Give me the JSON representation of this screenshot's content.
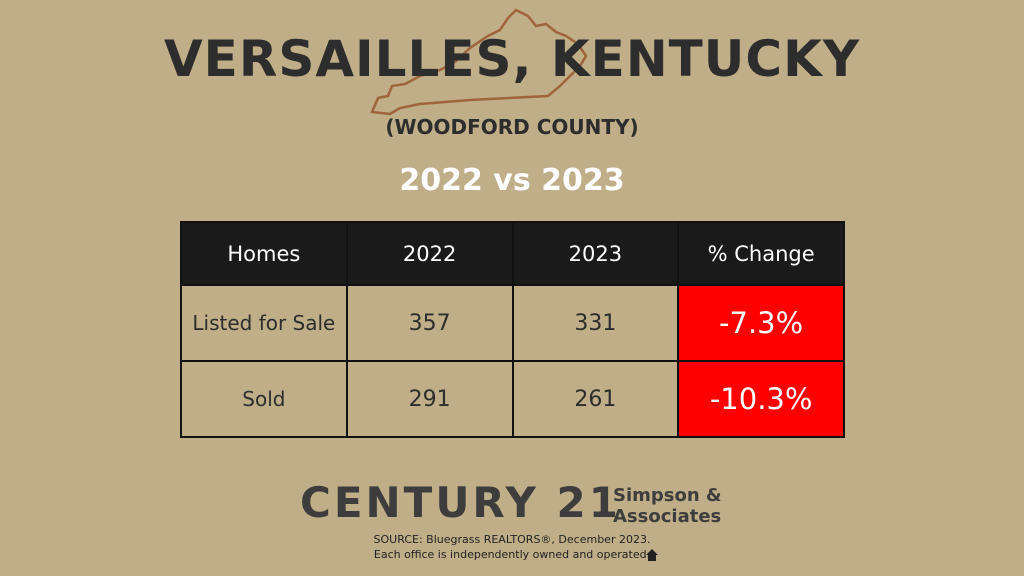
{
  "header": {
    "title": "VERSAILLES, KENTUCKY",
    "subtitle": "(WOODFORD COUNTY)",
    "comparison": "2022 vs 2023"
  },
  "table": {
    "columns": [
      "Homes",
      "2022",
      "2023",
      "% Change"
    ],
    "rows": [
      [
        "Listed for Sale",
        "357",
        "331",
        "-7.3%"
      ],
      [
        "Sold",
        "291",
        "261",
        "-10.3%"
      ]
    ]
  },
  "brand": {
    "logo": "CENTURY 21",
    "office_line1": "Simpson &",
    "office_line2": "Associates"
  },
  "footer": {
    "source": "SOURCE: Bluegrass REALTORS®, December 2023.",
    "disclaimer": "Each office is independently owned and operated."
  }
}
